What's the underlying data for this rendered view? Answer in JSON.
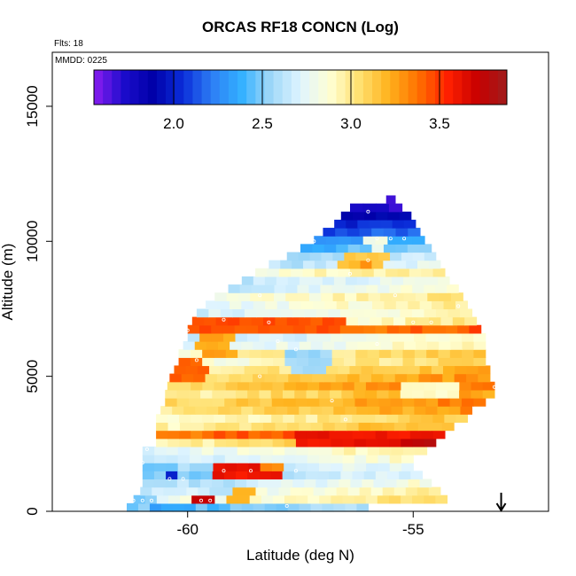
{
  "chart_data": {
    "type": "heatmap",
    "title": "ORCAS RF18 CONCN (Log)",
    "annotations": {
      "flights": "Flts: 18",
      "date": "MMDD: 0225"
    },
    "xlabel": "Latitude (deg N)",
    "ylabel": "Altitude (m)",
    "xlim": [
      -63,
      -52
    ],
    "ylim": [
      0,
      17000
    ],
    "x_ticks": [
      {
        "value": -60,
        "label": "-60"
      },
      {
        "value": -55,
        "label": "-55"
      }
    ],
    "y_ticks": [
      {
        "value": 0,
        "label": "0"
      },
      {
        "value": 5000,
        "label": "5000"
      },
      {
        "value": 10000,
        "label": "10000"
      },
      {
        "value": 15000,
        "label": "15000"
      }
    ],
    "colorbar": {
      "range": [
        1.55,
        3.88
      ],
      "ticks": [
        {
          "value": 2.0,
          "label": "2.0"
        },
        {
          "value": 2.5,
          "label": "2.5"
        },
        {
          "value": 3.0,
          "label": "3.0"
        },
        {
          "value": 3.5,
          "label": "3.5"
        }
      ],
      "colors": [
        "#8b1cf0",
        "#1c0ccc",
        "#0000a8",
        "#0a2cd8",
        "#2d7ef5",
        "#33b0ff",
        "#a0d8f8",
        "#dff4ff",
        "#ffffd4",
        "#ffe070",
        "#ffb21c",
        "#ff7000",
        "#ff2000",
        "#c80000",
        "#a01c1c"
      ]
    },
    "grid": false,
    "marker_arrow": {
      "x": -53.05
    },
    "swath": {
      "alt_step": 300,
      "lat_step": 0.26,
      "rows": [
        [
          -61.35,
          -56.0,
          2.55
        ],
        [
          -61.2,
          -54.25,
          2.95
        ],
        [
          -61.05,
          -54.4,
          2.85
        ],
        [
          -61.0,
          -54.6,
          2.75
        ],
        [
          -61.0,
          -54.8,
          2.65
        ],
        [
          -61.0,
          -55.0,
          2.7
        ],
        [
          -61.0,
          -55.0,
          2.8
        ],
        [
          -61.0,
          -54.7,
          2.9
        ],
        [
          -60.7,
          -54.5,
          3.1
        ],
        [
          -60.7,
          -54.3,
          3.5
        ],
        [
          -60.7,
          -54.1,
          3.1
        ],
        [
          -60.7,
          -53.8,
          3.0
        ],
        [
          -60.6,
          -53.7,
          3.15
        ],
        [
          -60.5,
          -53.4,
          3.2
        ],
        [
          -60.5,
          -53.2,
          3.1
        ],
        [
          -60.45,
          -53.2,
          3.2
        ],
        [
          -60.4,
          -53.3,
          3.15
        ],
        [
          -60.3,
          -53.3,
          3.05
        ],
        [
          -60.2,
          -53.4,
          2.95
        ],
        [
          -60.2,
          -53.4,
          3.0
        ],
        [
          -60.1,
          -53.4,
          2.8
        ],
        [
          -60.0,
          -53.4,
          2.75
        ],
        [
          -60.0,
          -53.5,
          3.3
        ],
        [
          -59.9,
          -53.6,
          2.85
        ],
        [
          -59.8,
          -53.7,
          2.8
        ],
        [
          -59.6,
          -53.8,
          2.85
        ],
        [
          -59.4,
          -53.9,
          2.9
        ],
        [
          -59.1,
          -54.0,
          2.75
        ],
        [
          -58.8,
          -54.2,
          2.7
        ],
        [
          -58.5,
          -54.3,
          2.9
        ],
        [
          -58.2,
          -54.4,
          2.65
        ],
        [
          -57.8,
          -54.5,
          2.55
        ],
        [
          -57.5,
          -54.6,
          2.4
        ],
        [
          -57.2,
          -54.75,
          2.3
        ],
        [
          -57.0,
          -54.85,
          2.1
        ],
        [
          -56.75,
          -54.95,
          2.0
        ],
        [
          -56.6,
          -55.05,
          1.8
        ],
        [
          -56.4,
          -55.25,
          1.65
        ],
        [
          -55.6,
          -55.4,
          1.6
        ]
      ],
      "overrides": [
        {
          "alt": [
            1200,
            1800
          ],
          "lat": [
            -61.0,
            -60.2
          ],
          "value": 2.5
        },
        {
          "alt": [
            1200,
            1500
          ],
          "lat": [
            -60.45,
            -60.3
          ],
          "value": 2.0
        },
        {
          "alt": [
            1200,
            1800
          ],
          "lat": [
            -59.4,
            -57.8
          ],
          "value": 3.6
        },
        {
          "alt": [
            1500,
            1800
          ],
          "lat": [
            -58.3,
            -57.8
          ],
          "value": 3.3
        },
        {
          "alt": [
            0,
            600
          ],
          "lat": [
            -61.3,
            -60.8
          ],
          "value": 2.5
        },
        {
          "alt": [
            300,
            600
          ],
          "lat": [
            -59.8,
            -59.3
          ],
          "value": 3.7
        },
        {
          "alt": [
            300,
            900
          ],
          "lat": [
            -59.1,
            -58.6
          ],
          "value": 3.2
        },
        {
          "alt": [
            600,
            1200
          ],
          "lat": [
            -59.6,
            -59.0
          ],
          "value": 2.6
        },
        {
          "alt": [
            2400,
            3000
          ],
          "lat": [
            -57.5,
            -53.6
          ],
          "value": 3.6
        },
        {
          "alt": [
            2400,
            2700
          ],
          "lat": [
            -55.3,
            -53.6
          ],
          "value": 3.75
        },
        {
          "alt": [
            6600,
            7200
          ],
          "lat": [
            -60.0,
            -56.6
          ],
          "value": 3.45
        },
        {
          "alt": [
            4800,
            5700
          ],
          "lat": [
            -60.6,
            -59.6
          ],
          "value": 3.4
        },
        {
          "alt": [
            5700,
            6600
          ],
          "lat": [
            -59.8,
            -59.0
          ],
          "value": 3.25
        },
        {
          "alt": [
            5100,
            6000
          ],
          "lat": [
            -57.8,
            -56.9
          ],
          "value": 2.55
        },
        {
          "alt": [
            4200,
            4800
          ],
          "lat": [
            -55.2,
            -54.0
          ],
          "value": 2.9
        },
        {
          "alt": [
            9000,
            9600
          ],
          "lat": [
            -56.6,
            -55.6
          ],
          "value": 3.15
        },
        {
          "alt": [
            9000,
            9300
          ],
          "lat": [
            -56.3,
            -56.0
          ],
          "value": 3.3
        },
        {
          "alt": [
            9600,
            10200
          ],
          "lat": [
            -56.0,
            -55.6
          ],
          "value": 2.8
        },
        {
          "alt": [
            12000,
            12600
          ],
          "lat": [
            -56.3,
            -55.6
          ],
          "value": 1.75
        }
      ],
      "dots": [
        [
          -61.2,
          400
        ],
        [
          -61.0,
          400
        ],
        [
          -60.8,
          400
        ],
        [
          -59.7,
          400
        ],
        [
          -59.5,
          400
        ],
        [
          -57.8,
          200
        ],
        [
          -60.4,
          1200
        ],
        [
          -60.1,
          1200
        ],
        [
          -59.2,
          1500
        ],
        [
          -58.6,
          1500
        ],
        [
          -57.6,
          1500
        ],
        [
          -61.0,
          1800
        ],
        [
          -60.9,
          2300
        ],
        [
          -53.6,
          2700
        ],
        [
          -53.9,
          3000
        ],
        [
          -56.5,
          3400
        ],
        [
          -56.8,
          4100
        ],
        [
          -53.2,
          4600
        ],
        [
          -60.6,
          5100
        ],
        [
          -58.4,
          5000
        ],
        [
          -59.8,
          5600
        ],
        [
          -58.0,
          6300
        ],
        [
          -57.6,
          6000
        ],
        [
          -55.8,
          6200
        ],
        [
          -60.0,
          6700
        ],
        [
          -59.2,
          7100
        ],
        [
          -58.2,
          7000
        ],
        [
          -55.0,
          7000
        ],
        [
          -54.6,
          7000
        ],
        [
          -55.4,
          8000
        ],
        [
          -54.0,
          7600
        ],
        [
          -59.0,
          8600
        ],
        [
          -58.4,
          8000
        ],
        [
          -56.4,
          8800
        ],
        [
          -56.0,
          9300
        ],
        [
          -55.8,
          10100
        ],
        [
          -55.5,
          10100
        ],
        [
          -55.2,
          10100
        ],
        [
          -57.2,
          10000
        ],
        [
          -58.2,
          10000
        ],
        [
          -54.4,
          10000
        ],
        [
          -57.2,
          10600
        ],
        [
          -56.9,
          10900
        ],
        [
          -56.0,
          11100
        ],
        [
          -57.0,
          11700
        ],
        [
          -56.6,
          12200
        ],
        [
          -56.2,
          12200
        ],
        [
          -55.8,
          12200
        ],
        [
          -55.4,
          12200
        ],
        [
          -55.0,
          12200
        ],
        [
          -54.8,
          12000
        ],
        [
          -54.7,
          11500
        ],
        [
          -54.5,
          11000
        ]
      ]
    }
  }
}
